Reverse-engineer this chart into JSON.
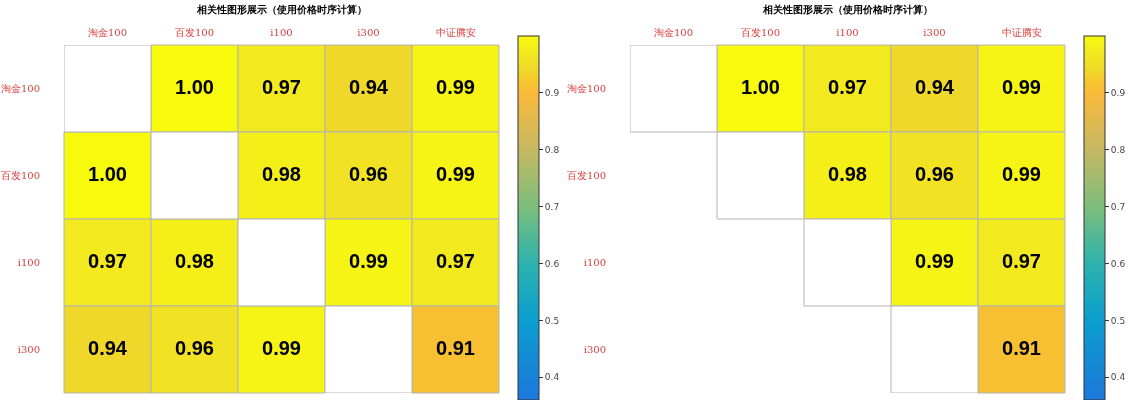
{
  "chart_data": [
    {
      "type": "heatmap",
      "title": "相关性图形展示（使用价格时序计算）",
      "categories": [
        "淘金100",
        "百发100",
        "i100",
        "i300",
        "中证腾安"
      ],
      "y_categories": [
        "淘金100",
        "百发100",
        "i100",
        "i300"
      ],
      "cells": [
        [
          null,
          1.0,
          0.97,
          0.94,
          0.99
        ],
        [
          1.0,
          null,
          0.98,
          0.96,
          0.99
        ],
        [
          0.97,
          0.98,
          null,
          0.99,
          0.97
        ],
        [
          0.94,
          0.96,
          0.99,
          null,
          0.91
        ]
      ],
      "cell_labels": [
        [
          null,
          "1.00",
          "0.97",
          "0.94",
          "0.99"
        ],
        [
          "1.00",
          null,
          "0.98",
          "0.96",
          "0.99"
        ],
        [
          "0.97",
          "0.98",
          null,
          "0.99",
          "0.97"
        ],
        [
          "0.94",
          "0.96",
          "0.99",
          null,
          "0.91"
        ]
      ],
      "clim": [
        0.36,
        1.0
      ],
      "cticks": [
        0.4,
        0.5,
        0.6,
        0.7,
        0.8,
        0.9
      ]
    },
    {
      "type": "heatmap",
      "title": "相关性图形展示（使用价格时序计算）",
      "categories": [
        "淘金100",
        "百发100",
        "i100",
        "i300",
        "中证腾安"
      ],
      "y_categories": [
        "淘金100",
        "百发100",
        "i100",
        "i300"
      ],
      "cells": [
        [
          null,
          1.0,
          0.97,
          0.94,
          0.99
        ],
        [
          null,
          null,
          0.98,
          0.96,
          0.99
        ],
        [
          null,
          null,
          null,
          0.99,
          0.97
        ],
        [
          null,
          null,
          null,
          null,
          0.91
        ]
      ],
      "cell_labels": [
        [
          null,
          "1.00",
          "0.97",
          "0.94",
          "0.99"
        ],
        [
          null,
          null,
          "0.98",
          "0.96",
          "0.99"
        ],
        [
          null,
          null,
          null,
          "0.99",
          "0.97"
        ],
        [
          null,
          null,
          null,
          null,
          "0.91"
        ]
      ],
      "clim": [
        0.36,
        1.0
      ],
      "cticks": [
        0.4,
        0.5,
        0.6,
        0.7,
        0.8,
        0.9
      ]
    }
  ]
}
